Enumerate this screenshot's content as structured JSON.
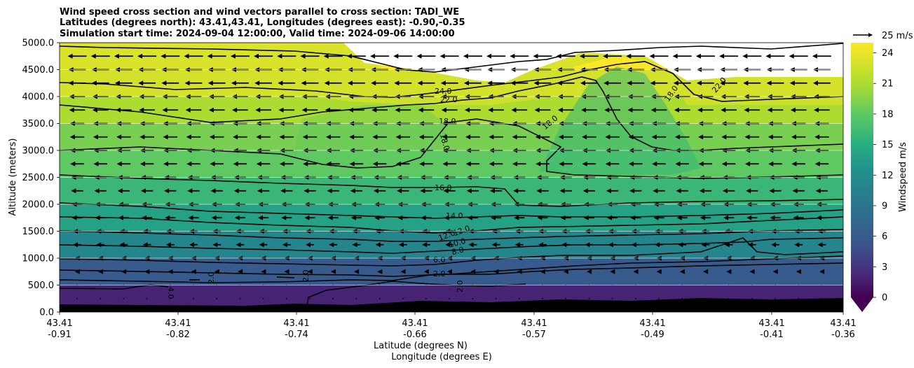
{
  "chart_data": {
    "type": "contour",
    "title_lines": [
      "Wind speed cross section and wind vectors parallel to cross section: TADI_WE",
      "Latitudes (degrees north): 43.41,43.41, Longitudes (degrees east): -0.90,-0.35",
      "Simulation start time: 2024-09-04 12:00:00, Valid time: 2024-09-06 14:00:00"
    ],
    "ylabel": "Altitude (meters)",
    "xlabel_lines": [
      "Latitude (degrees N)",
      "Longitude (degrees E)"
    ],
    "ylim": [
      0,
      5000
    ],
    "y_ticks": [
      "0.0",
      "500.0",
      "1000.0",
      "1500.0",
      "2000.0",
      "2500.0",
      "3000.0",
      "3500.0",
      "4000.0",
      "4500.0",
      "5000.0"
    ],
    "x_ticks": [
      {
        "lat": "43.41",
        "lon": "-0.91"
      },
      {
        "lat": "43.41",
        "lon": "-0.82"
      },
      {
        "lat": "43.41",
        "lon": "-0.74"
      },
      {
        "lat": "43.41",
        "lon": "-0.66"
      },
      {
        "lat": "43.41",
        "lon": "-0.57"
      },
      {
        "lat": "43.41",
        "lon": "-0.49"
      },
      {
        "lat": "43.41",
        "lon": "-0.41"
      },
      {
        "lat": "43.41",
        "lon": "-0.36"
      }
    ],
    "colorbar": {
      "label": "Windspeed m/s",
      "range": [
        0,
        25
      ],
      "ticks": [
        "0",
        "3",
        "6",
        "9",
        "12",
        "15",
        "18",
        "21",
        "24"
      ]
    },
    "quiver_key": "25 m/s",
    "contour_labels": [
      "24.0",
      "22.0",
      "18.0",
      "18.0",
      "18.0",
      "18.0",
      "22.0",
      "16.0",
      "14.0",
      "12.0",
      "12.0",
      "10.0",
      "8.0",
      "6.0",
      "2.0",
      "2.0",
      "2.0",
      "2.0",
      "2.0",
      "4.0"
    ],
    "windspeed_by_altitude": [
      {
        "altitude": 250,
        "speed": 2
      },
      {
        "altitude": 750,
        "speed": 6
      },
      {
        "altitude": 1250,
        "speed": 11
      },
      {
        "altitude": 1750,
        "speed": 14
      },
      {
        "altitude": 2250,
        "speed": 16
      },
      {
        "altitude": 2750,
        "speed": 18
      },
      {
        "altitude": 3250,
        "speed": 19
      },
      {
        "altitude": 3750,
        "speed": 21
      },
      {
        "altitude": 4250,
        "speed": 23
      },
      {
        "altitude": 4750,
        "speed": 25
      }
    ]
  }
}
